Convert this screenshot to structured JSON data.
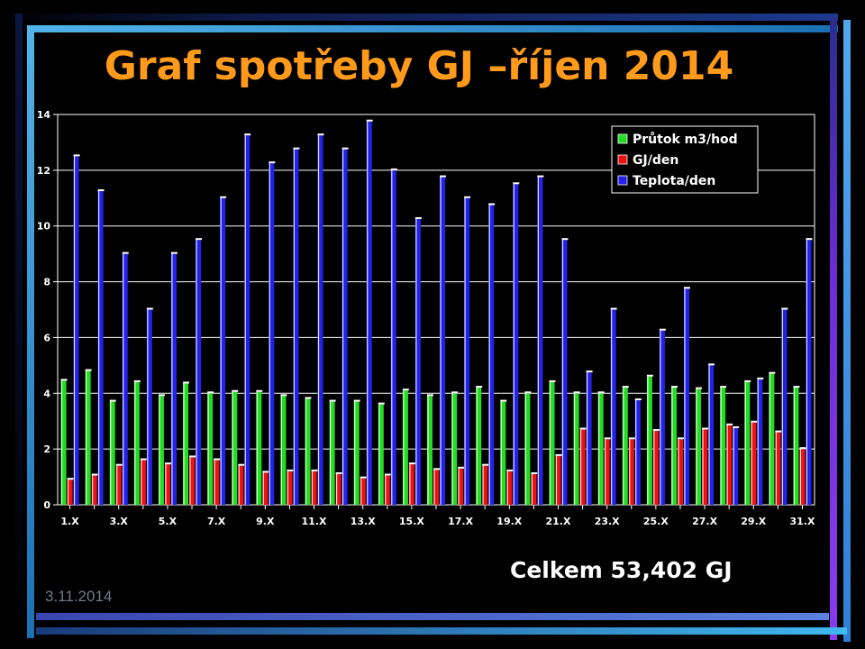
{
  "slide": {
    "title": "Graf spotřeby GJ –říjen 2014",
    "total": "Celkem 53,402 GJ",
    "date": "3.11.2014"
  },
  "colors": {
    "background": "#000000",
    "title": "#ff9a1a",
    "prutok": "#22dd22",
    "gj": "#ee1111",
    "teplota": "#2222ee"
  },
  "chart_data": {
    "type": "bar",
    "title": "",
    "xlabel": "",
    "ylabel": "",
    "ylim": [
      0,
      14
    ],
    "yticks": [
      0,
      2,
      4,
      6,
      8,
      10,
      12,
      14
    ],
    "grid": true,
    "legend_position": "top-right",
    "categories": [
      "1.X",
      "2.X",
      "3.X",
      "4.X",
      "5.X",
      "6.X",
      "7.X",
      "8.X",
      "9.X",
      "10.X",
      "11.X",
      "12.X",
      "13.X",
      "14.X",
      "15.X",
      "16.X",
      "17.X",
      "18.X",
      "19.X",
      "20.X",
      "21.X",
      "22.X",
      "23.X",
      "24.X",
      "25.X",
      "26.X",
      "27.X",
      "28.X",
      "29.X",
      "30.X",
      "31.X"
    ],
    "tick_labels": [
      "1.X",
      "",
      "3.X",
      "",
      "5.X",
      "",
      "7.X",
      "",
      "9.X",
      "",
      "11.X",
      "",
      "13.X",
      "",
      "15.X",
      "",
      "17.X",
      "",
      "19.X",
      "",
      "21.X",
      "",
      "23.X",
      "",
      "25.X",
      "",
      "27.X",
      "",
      "29.X",
      "",
      "31.X"
    ],
    "series": [
      {
        "name": "Průtok m3/hod",
        "color": "#22dd22",
        "values": [
          4.45,
          4.8,
          3.7,
          4.4,
          3.9,
          4.35,
          4.0,
          4.05,
          4.05,
          3.9,
          3.8,
          3.7,
          3.7,
          3.6,
          4.1,
          3.9,
          4.0,
          4.2,
          3.7,
          4.0,
          4.4,
          4.0,
          4.0,
          4.2,
          4.6,
          4.2,
          4.15,
          4.2,
          4.4,
          4.7,
          4.2
        ]
      },
      {
        "name": "GJ/den",
        "color": "#ee1111",
        "values": [
          0.9,
          1.05,
          1.4,
          1.6,
          1.45,
          1.7,
          1.6,
          1.4,
          1.15,
          1.2,
          1.2,
          1.1,
          0.95,
          1.05,
          1.45,
          1.25,
          1.3,
          1.4,
          1.2,
          1.1,
          1.75,
          2.7,
          2.35,
          2.35,
          2.65,
          2.35,
          2.7,
          2.85,
          2.95,
          2.6,
          2.0
        ]
      },
      {
        "name": "Teplota/den",
        "color": "#2222ee",
        "values": [
          12.5,
          11.25,
          9.0,
          7.0,
          9.0,
          9.5,
          11.0,
          13.25,
          12.25,
          12.75,
          13.25,
          12.75,
          13.75,
          12.0,
          10.25,
          11.75,
          11.0,
          10.75,
          11.5,
          11.75,
          9.5,
          4.75,
          7.0,
          3.75,
          6.25,
          7.75,
          5.0,
          2.75,
          4.5,
          7.0,
          9.5
        ]
      }
    ]
  }
}
